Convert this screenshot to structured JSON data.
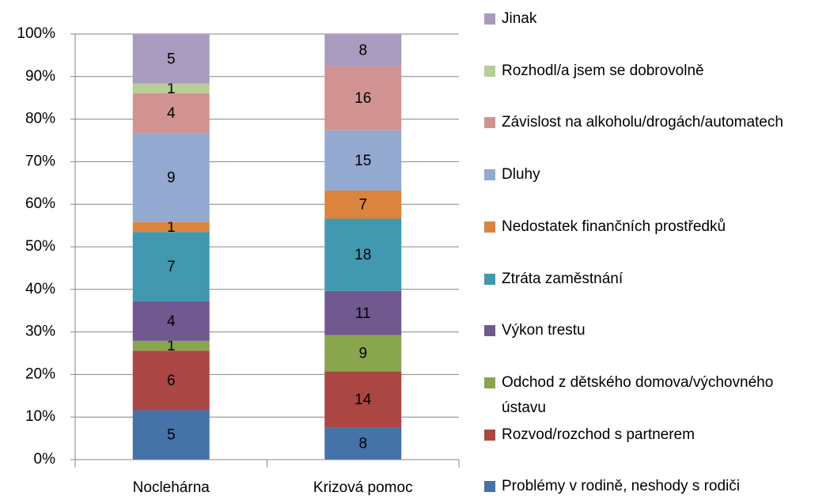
{
  "chart_data": {
    "type": "bar",
    "stacking": "percent",
    "categories": [
      "Noclehárna",
      "Krizová pomoc"
    ],
    "series": [
      {
        "name": "Problémy v rodině, neshody s rodiči",
        "color": "#4572A7",
        "values": [
          5,
          8
        ]
      },
      {
        "name": "Rozvod/rozchod s partnerem",
        "color": "#AA4643",
        "values": [
          6,
          14
        ]
      },
      {
        "name": "Odchod z dětského domova/výchovného ústavu",
        "color": "#89A54E",
        "values": [
          1,
          9
        ]
      },
      {
        "name": "Výkon trestu",
        "color": "#71588F",
        "values": [
          4,
          11
        ]
      },
      {
        "name": "Ztráta zaměstnání",
        "color": "#4198AF",
        "values": [
          7,
          18
        ]
      },
      {
        "name": "Nedostatek finančních prostředků",
        "color": "#DB843D",
        "values": [
          1,
          7
        ]
      },
      {
        "name": "Dluhy",
        "color": "#93A9CF",
        "values": [
          9,
          15
        ]
      },
      {
        "name": "Závislost na alkoholu/drogách/automatech",
        "color": "#D19392",
        "values": [
          4,
          16
        ]
      },
      {
        "name": "Rozhodl/a jsem se dobrovolně",
        "color": "#B9CD96",
        "values": [
          1,
          0
        ]
      },
      {
        "name": "Jinak",
        "color": "#A99BBD",
        "values": [
          5,
          8
        ]
      }
    ],
    "ylim": [
      0,
      100
    ],
    "yticks": [
      {
        "value": 0,
        "label": "0%"
      },
      {
        "value": 10,
        "label": "10%"
      },
      {
        "value": 20,
        "label": "20%"
      },
      {
        "value": 30,
        "label": "30%"
      },
      {
        "value": 40,
        "label": "40%"
      },
      {
        "value": 50,
        "label": "50%"
      },
      {
        "value": 60,
        "label": "60%"
      },
      {
        "value": 70,
        "label": "70%"
      },
      {
        "value": 80,
        "label": "80%"
      },
      {
        "value": 90,
        "label": "90%"
      },
      {
        "value": 100,
        "label": "100%"
      }
    ],
    "legend": "right"
  }
}
